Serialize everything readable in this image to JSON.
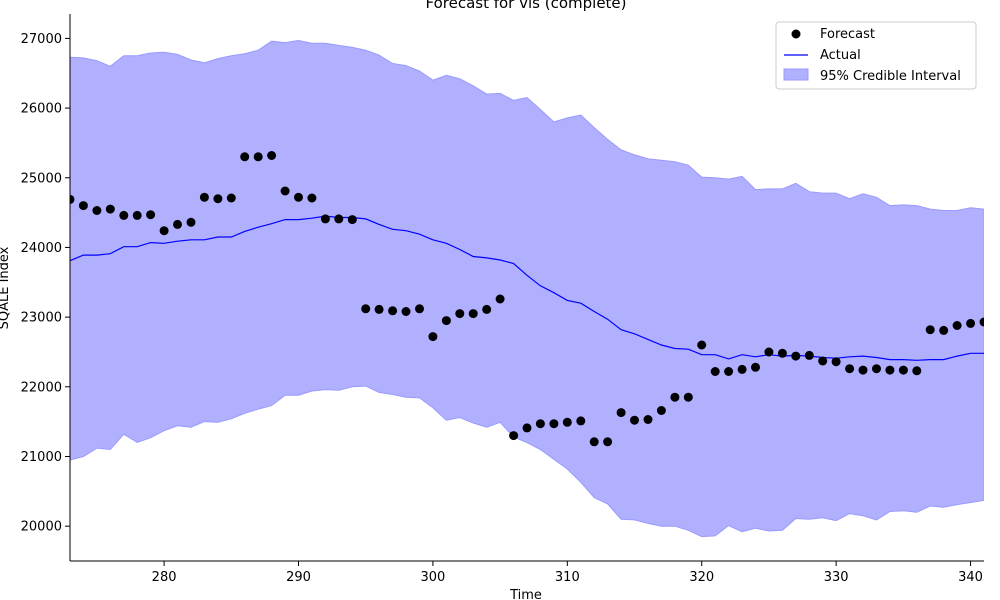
{
  "chart_data": {
    "type": "line",
    "title": "Forecast for vis (complete)",
    "xlabel": "Time",
    "ylabel": "SQALE Index",
    "xlim": [
      273,
      341
    ],
    "ylim": [
      19500,
      27350
    ],
    "xticks": [
      280,
      290,
      300,
      310,
      320,
      330,
      340
    ],
    "yticks": [
      20000,
      21000,
      22000,
      23000,
      24000,
      25000,
      26000,
      27000
    ],
    "grid": false,
    "legend_position": "top-right",
    "colors": {
      "forecast": "#000000",
      "actual": "#0000ff",
      "interval_fill": "#b0b0ff",
      "interval_edge": "#9a9aff"
    },
    "x": [
      273,
      274,
      275,
      276,
      277,
      278,
      279,
      280,
      281,
      282,
      283,
      284,
      285,
      286,
      287,
      288,
      289,
      290,
      291,
      292,
      293,
      294,
      295,
      296,
      297,
      298,
      299,
      300,
      301,
      302,
      303,
      304,
      305,
      306,
      307,
      308,
      309,
      310,
      311,
      312,
      313,
      314,
      315,
      316,
      317,
      318,
      319,
      320,
      321,
      322,
      323,
      324,
      325,
      326,
      327,
      328,
      329,
      330,
      331,
      332,
      333,
      334,
      335,
      336,
      337,
      338,
      339,
      340,
      341
    ],
    "series": [
      {
        "name": "Forecast",
        "kind": "scatter",
        "values": [
          24690,
          24600,
          24530,
          24550,
          24460,
          24460,
          24470,
          24240,
          24330,
          24360,
          24720,
          24700,
          24710,
          25300,
          25300,
          25320,
          24810,
          24720,
          24710,
          24410,
          24410,
          24400,
          23120,
          23110,
          23090,
          23080,
          23120,
          22720,
          22950,
          23050,
          23050,
          23110,
          23260,
          21300,
          21410,
          21470,
          21470,
          21490,
          21510,
          21210,
          21210,
          21630,
          21520,
          21530,
          21660,
          21850,
          21850,
          22600,
          22220,
          22220,
          22250,
          22280,
          22500,
          22480,
          22440,
          22450,
          22370,
          22360,
          22260,
          22240,
          22260,
          22240,
          22240,
          22230,
          22820,
          22810,
          22880,
          22910,
          22930
        ]
      },
      {
        "name": "Actual",
        "kind": "line",
        "values": [
          23810,
          23890,
          23890,
          23910,
          24010,
          24010,
          24070,
          24060,
          24090,
          24110,
          24110,
          24150,
          24150,
          24230,
          24290,
          24340,
          24400,
          24400,
          24420,
          24450,
          24430,
          24430,
          24410,
          24330,
          24260,
          24240,
          24190,
          24110,
          24060,
          23970,
          23870,
          23850,
          23820,
          23770,
          23600,
          23450,
          23350,
          23240,
          23200,
          23080,
          22970,
          22820,
          22760,
          22680,
          22600,
          22550,
          22540,
          22460,
          22460,
          22400,
          22460,
          22430,
          22460,
          22440,
          22450,
          22440,
          22420,
          22410,
          22430,
          22440,
          22420,
          22390,
          22390,
          22380,
          22390,
          22390,
          22440,
          22480,
          22480
        ]
      },
      {
        "name": "95% Credible Interval",
        "kind": "band",
        "upper": [
          26730,
          26720,
          26680,
          26600,
          26750,
          26750,
          26790,
          26800,
          26770,
          26690,
          26650,
          26710,
          26750,
          26780,
          26830,
          26960,
          26940,
          26970,
          26930,
          26930,
          26900,
          26870,
          26830,
          26760,
          26640,
          26610,
          26530,
          26400,
          26470,
          26420,
          26320,
          26200,
          26210,
          26110,
          26150,
          25980,
          25800,
          25860,
          25900,
          25720,
          25550,
          25400,
          25330,
          25270,
          25250,
          25230,
          25180,
          25010,
          25000,
          24980,
          25020,
          24830,
          24840,
          24840,
          24920,
          24800,
          24780,
          24780,
          24700,
          24770,
          24720,
          24600,
          24610,
          24600,
          24550,
          24530,
          24530,
          24570,
          24550
        ],
        "lower": [
          20950,
          21000,
          21120,
          21100,
          21320,
          21200,
          21270,
          21370,
          21440,
          21420,
          21500,
          21490,
          21540,
          21620,
          21680,
          21730,
          21880,
          21880,
          21940,
          21960,
          21950,
          22000,
          22010,
          21920,
          21890,
          21850,
          21840,
          21700,
          21520,
          21560,
          21480,
          21420,
          21490,
          21280,
          21200,
          21100,
          20960,
          20820,
          20630,
          20410,
          20320,
          20100,
          20090,
          20040,
          20000,
          20000,
          19940,
          19850,
          19860,
          20010,
          19920,
          19970,
          19930,
          19940,
          20110,
          20100,
          20120,
          20080,
          20180,
          20150,
          20090,
          20210,
          20220,
          20200,
          20290,
          20270,
          20310,
          20340,
          20370
        ]
      }
    ]
  }
}
